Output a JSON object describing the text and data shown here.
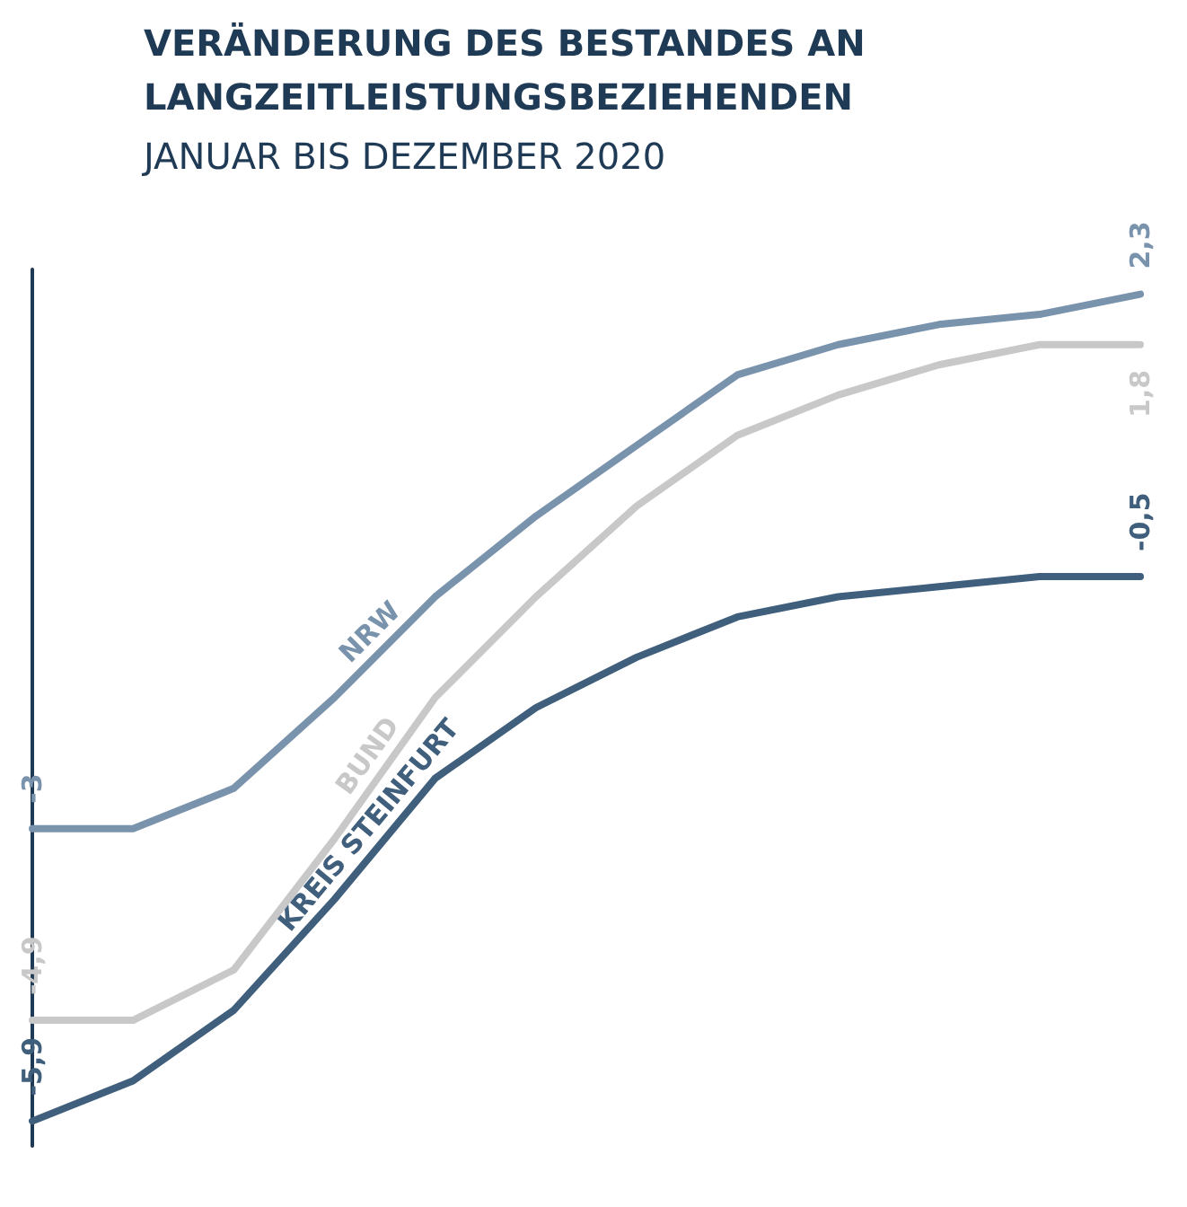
{
  "chart_data": {
    "type": "line",
    "title": "VERÄNDERUNG DES BESTANDES AN\nLANGZEITLEISTUNGSBEZIEHENDEN",
    "subtitle": "JANUAR BIS DEZEMBER 2020",
    "categories": [
      null,
      null,
      null,
      null,
      null,
      null,
      null,
      null,
      null,
      null,
      null,
      null
    ],
    "series": [
      {
        "name": "NRW",
        "color": "#7a93ad",
        "values": [
          -3,
          -3,
          -2.6,
          -1.7,
          -0.7,
          0.1,
          0.8,
          1.5,
          1.8,
          2.0,
          2.1,
          2.3
        ],
        "value_labels": [
          "-3",
          null,
          null,
          null,
          null,
          null,
          null,
          null,
          null,
          null,
          null,
          "2,3"
        ]
      },
      {
        "name": "BUND",
        "color": "#c8c8c8",
        "values": [
          -4.9,
          -4.9,
          -4.4,
          -3.1,
          -1.7,
          -0.7,
          0.2,
          0.9,
          1.3,
          1.6,
          1.8,
          1.8
        ],
        "value_labels": [
          "-4,9",
          null,
          null,
          null,
          null,
          null,
          null,
          null,
          null,
          null,
          null,
          "1,8"
        ]
      },
      {
        "name": "KREIS STEINFURT",
        "color": "#3f5f7c",
        "values": [
          -5.9,
          -5.5,
          -4.8,
          -3.7,
          -2.5,
          -1.8,
          -1.3,
          -0.9,
          -0.7,
          -0.6,
          -0.5,
          -0.5
        ],
        "value_labels": [
          "-5,9",
          null,
          null,
          null,
          null,
          null,
          null,
          null,
          null,
          null,
          null,
          "-0,5"
        ]
      }
    ],
    "grid": false,
    "legend": false,
    "marker": "none",
    "line_style": "solid"
  }
}
